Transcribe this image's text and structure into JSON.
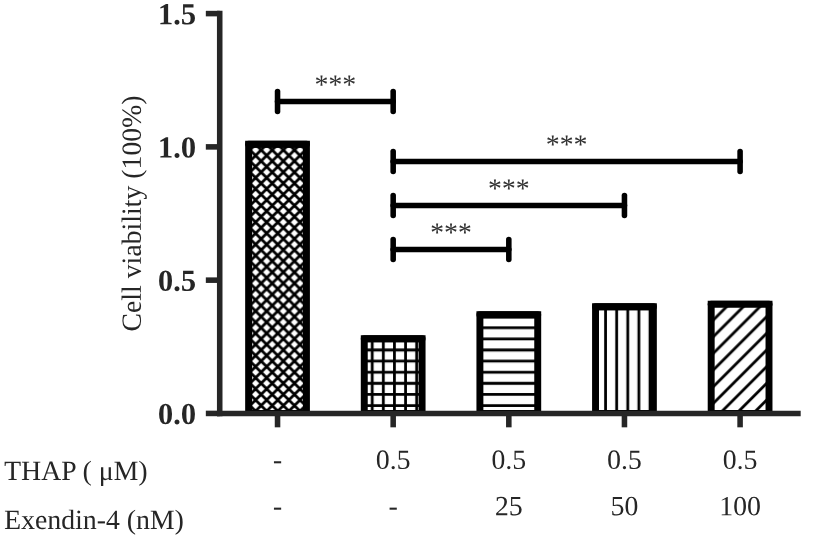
{
  "chart_data": {
    "type": "bar",
    "categories": [
      "-\n-",
      "0.5\n-",
      "0.5\n25",
      "0.5\n50",
      "0.5\n100"
    ],
    "values": [
      1.01,
      0.28,
      0.37,
      0.4,
      0.41
    ],
    "color": "#000000",
    "ylabel": "Cell viability (100%)",
    "ylim": [
      0,
      1.5
    ],
    "yticks": [
      {
        "value": 0,
        "label": "0.0"
      },
      {
        "value": 0.5,
        "label": "0.5"
      },
      {
        "value": 1.0,
        "label": "1.0"
      },
      {
        "value": 1.5,
        "label": "1.5"
      }
    ],
    "annotations": [
      "***",
      "***",
      "***",
      "***",
      "THAP ( μM)",
      "Exendin-4 (nM)"
    ],
    "grid": false,
    "legend": false
  }
}
